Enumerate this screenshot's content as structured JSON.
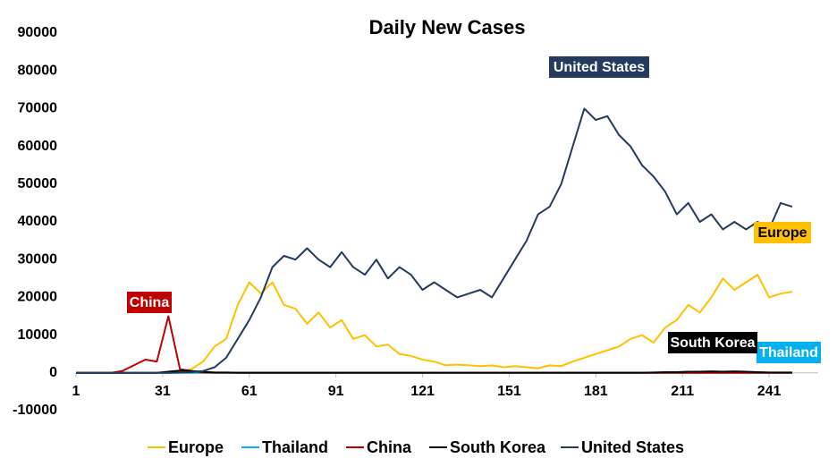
{
  "chart_data": {
    "type": "line",
    "title": "Daily New Cases",
    "x": [
      1,
      5,
      9,
      13,
      17,
      21,
      25,
      29,
      33,
      37,
      41,
      45,
      49,
      53,
      57,
      61,
      65,
      69,
      73,
      77,
      81,
      85,
      89,
      93,
      97,
      101,
      105,
      109,
      113,
      117,
      121,
      125,
      129,
      133,
      137,
      141,
      145,
      149,
      153,
      157,
      161,
      165,
      169,
      173,
      177,
      181,
      185,
      189,
      193,
      197,
      201,
      205,
      209,
      213,
      217,
      221,
      225,
      229,
      233,
      237,
      241,
      245,
      249
    ],
    "xlim": [
      1,
      258
    ],
    "xticks": [
      1,
      31,
      61,
      91,
      121,
      151,
      181,
      211,
      241
    ],
    "ylim": [
      -10000,
      90000
    ],
    "yticks": [
      -10000,
      0,
      10000,
      20000,
      30000,
      40000,
      50000,
      60000,
      70000,
      80000,
      90000
    ],
    "grid": false,
    "legend": "bottom",
    "series": [
      {
        "name": "Europe",
        "color": "#ffc000",
        "values": [
          0,
          0,
          0,
          0,
          0,
          0,
          0,
          0,
          0,
          500,
          1000,
          3000,
          7000,
          9000,
          18000,
          24000,
          21000,
          24000,
          18000,
          17000,
          13000,
          16000,
          12000,
          14000,
          9000,
          10000,
          7000,
          7500,
          5000,
          4500,
          3500,
          3000,
          2000,
          2200,
          2000,
          1800,
          2000,
          1500,
          1800,
          1500,
          1200,
          2000,
          1800,
          3000,
          4000,
          5000,
          6000,
          7000,
          9000,
          10000,
          8000,
          12000,
          14000,
          18000,
          16000,
          20000,
          25000,
          22000,
          24000,
          26000,
          20000,
          21000,
          21500
        ]
      },
      {
        "name": "Thailand",
        "color": "#00b0f0",
        "values": [
          0,
          0,
          0,
          0,
          0,
          0,
          0,
          0,
          0,
          5,
          5,
          5,
          5,
          5,
          5,
          5,
          5,
          5,
          5,
          5,
          5,
          5,
          5,
          5,
          5,
          5,
          5,
          5,
          5,
          5,
          5,
          5,
          5,
          5,
          5,
          5,
          5,
          5,
          5,
          5,
          5,
          5,
          5,
          5,
          5,
          5,
          5,
          5,
          5,
          5,
          5,
          5,
          5,
          5,
          5,
          5,
          5,
          5,
          5,
          5,
          5,
          5,
          5
        ]
      },
      {
        "name": "China",
        "color": "#c00000",
        "values": [
          0,
          0,
          0,
          0,
          500,
          2000,
          3500,
          3000,
          15000,
          1000,
          500,
          100,
          50,
          50,
          30,
          30,
          20,
          20,
          20,
          20,
          20,
          20,
          20,
          20,
          20,
          20,
          20,
          20,
          20,
          20,
          20,
          20,
          20,
          20,
          20,
          20,
          20,
          20,
          20,
          20,
          20,
          20,
          20,
          20,
          20,
          20,
          20,
          20,
          20,
          20,
          20,
          20,
          20,
          20,
          20,
          20,
          20,
          20,
          20,
          20,
          20,
          20,
          20
        ]
      },
      {
        "name": "South Korea",
        "color": "#000000",
        "values": [
          0,
          0,
          0,
          0,
          0,
          0,
          0,
          0,
          300,
          600,
          500,
          300,
          100,
          100,
          50,
          50,
          50,
          50,
          50,
          50,
          50,
          50,
          50,
          50,
          50,
          50,
          50,
          50,
          50,
          50,
          50,
          50,
          50,
          50,
          50,
          50,
          50,
          50,
          50,
          50,
          50,
          50,
          50,
          50,
          50,
          50,
          50,
          50,
          50,
          50,
          100,
          200,
          200,
          300,
          300,
          400,
          300,
          400,
          300,
          200,
          100,
          100,
          100
        ]
      },
      {
        "name": "United States",
        "color": "#243a5e",
        "values": [
          0,
          0,
          0,
          0,
          0,
          0,
          0,
          0,
          0,
          100,
          200,
          500,
          1500,
          4000,
          9000,
          14000,
          20000,
          28000,
          31000,
          30000,
          33000,
          30000,
          28000,
          32000,
          28000,
          26000,
          30000,
          25000,
          28000,
          26000,
          22000,
          24000,
          22000,
          20000,
          21000,
          22000,
          20000,
          25000,
          30000,
          35000,
          42000,
          44000,
          50000,
          60000,
          70000,
          67000,
          68000,
          63000,
          60000,
          55000,
          52000,
          48000,
          42000,
          45000,
          40000,
          42000,
          38000,
          40000,
          38000,
          40000,
          38000,
          45000,
          44000
        ]
      }
    ]
  }
}
